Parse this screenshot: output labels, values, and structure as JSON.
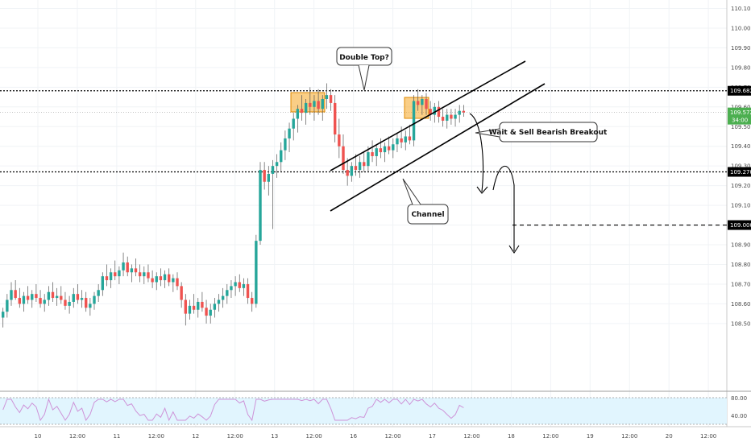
{
  "chart_data": [
    {
      "type": "candlestick",
      "ylim": [
        108.44,
        110.12
      ],
      "y_ticks": [
        "110.100",
        "110.000",
        "109.900",
        "109.800",
        "109.700",
        "109.600",
        "109.500",
        "109.400",
        "109.300",
        "109.200",
        "109.100",
        "109.000",
        "108.900",
        "108.800",
        "108.700",
        "108.600",
        "108.500"
      ],
      "x_ticks": [
        "10",
        "12:00",
        "11",
        "12:00",
        "12",
        "12:00",
        "13",
        "12:00",
        "16",
        "12:00",
        "17",
        "12:00",
        "18",
        "12:00",
        "19",
        "12:00",
        "20",
        "12:00"
      ],
      "grid": true,
      "colors": {
        "up": "#26a69a",
        "down": "#ef5350",
        "price_line": "#000000"
      },
      "horizontal_lines": [
        {
          "value": 109.682,
          "label": "109.682",
          "style": "dotted"
        },
        {
          "value": 109.27,
          "label": "109.270",
          "style": "dotted"
        },
        {
          "value": 109.0,
          "label": "109.000",
          "style": "dashed"
        }
      ],
      "current_price": {
        "value": 109.572,
        "label": "109.572",
        "countdown": "34:00",
        "color": "#4caf50"
      },
      "annotations": [
        {
          "text": "Double Top?"
        },
        {
          "text": "Wait & Sell Bearish Breakout"
        },
        {
          "text": "Channel"
        }
      ],
      "ohlc": [
        [
          108.53,
          108.58,
          108.48,
          108.56
        ],
        [
          108.56,
          108.65,
          108.53,
          108.62
        ],
        [
          108.62,
          108.71,
          108.59,
          108.67
        ],
        [
          108.67,
          108.72,
          108.62,
          108.63
        ],
        [
          108.63,
          108.68,
          108.58,
          108.6
        ],
        [
          108.6,
          108.66,
          108.56,
          108.64
        ],
        [
          108.64,
          108.69,
          108.6,
          108.62
        ],
        [
          108.62,
          108.67,
          108.58,
          108.65
        ],
        [
          108.65,
          108.7,
          108.61,
          108.63
        ],
        [
          108.63,
          108.67,
          108.58,
          108.6
        ],
        [
          108.6,
          108.65,
          108.56,
          108.62
        ],
        [
          108.62,
          108.69,
          108.59,
          108.66
        ],
        [
          108.66,
          108.71,
          108.61,
          108.63
        ],
        [
          108.63,
          108.68,
          108.59,
          108.64
        ],
        [
          108.64,
          108.69,
          108.6,
          108.62
        ],
        [
          108.62,
          108.66,
          108.57,
          108.59
        ],
        [
          108.59,
          108.64,
          108.55,
          108.61
        ],
        [
          108.61,
          108.68,
          108.58,
          108.65
        ],
        [
          108.65,
          108.7,
          108.6,
          108.62
        ],
        [
          108.62,
          108.67,
          108.58,
          108.63
        ],
        [
          108.63,
          108.66,
          108.56,
          108.58
        ],
        [
          108.58,
          108.63,
          108.54,
          108.6
        ],
        [
          108.6,
          108.66,
          108.57,
          108.64
        ],
        [
          108.64,
          108.7,
          108.61,
          108.67
        ],
        [
          108.67,
          108.76,
          108.64,
          108.74
        ],
        [
          108.74,
          108.8,
          108.69,
          108.72
        ],
        [
          108.72,
          108.78,
          108.68,
          108.76
        ],
        [
          108.76,
          108.82,
          108.72,
          108.74
        ],
        [
          108.74,
          108.79,
          108.7,
          108.77
        ],
        [
          108.77,
          108.86,
          108.74,
          108.81
        ],
        [
          108.81,
          108.84,
          108.74,
          108.76
        ],
        [
          108.76,
          108.8,
          108.71,
          108.78
        ],
        [
          108.78,
          108.83,
          108.74,
          108.76
        ],
        [
          108.76,
          108.8,
          108.71,
          108.74
        ],
        [
          108.74,
          108.79,
          108.7,
          108.76
        ],
        [
          108.76,
          108.8,
          108.71,
          108.73
        ],
        [
          108.73,
          108.77,
          108.68,
          108.71
        ],
        [
          108.71,
          108.76,
          108.67,
          108.74
        ],
        [
          108.74,
          108.78,
          108.69,
          108.72
        ],
        [
          108.72,
          108.77,
          108.68,
          108.75
        ],
        [
          108.75,
          108.78,
          108.69,
          108.71
        ],
        [
          108.71,
          108.75,
          108.66,
          108.73
        ],
        [
          108.73,
          108.76,
          108.67,
          108.69
        ],
        [
          108.69,
          108.71,
          108.58,
          108.62
        ],
        [
          108.62,
          108.65,
          108.49,
          108.55
        ],
        [
          108.55,
          108.62,
          108.52,
          108.59
        ],
        [
          108.59,
          108.65,
          108.55,
          108.57
        ],
        [
          108.57,
          108.63,
          108.53,
          108.61
        ],
        [
          108.61,
          108.66,
          108.56,
          108.58
        ],
        [
          108.58,
          108.62,
          108.5,
          108.54
        ],
        [
          108.54,
          108.6,
          108.5,
          108.57
        ],
        [
          108.57,
          108.63,
          108.53,
          108.6
        ],
        [
          108.6,
          108.65,
          108.56,
          108.62
        ],
        [
          108.62,
          108.68,
          108.58,
          108.64
        ],
        [
          108.64,
          108.7,
          108.6,
          108.67
        ],
        [
          108.67,
          108.72,
          108.63,
          108.69
        ],
        [
          108.69,
          108.74,
          108.64,
          108.71
        ],
        [
          108.71,
          108.75,
          108.66,
          108.68
        ],
        [
          108.68,
          108.73,
          108.64,
          108.7
        ],
        [
          108.7,
          108.73,
          108.6,
          108.63
        ],
        [
          108.63,
          108.66,
          108.56,
          108.6
        ],
        [
          108.6,
          108.95,
          108.58,
          108.92
        ],
        [
          108.92,
          109.32,
          108.9,
          109.28
        ],
        [
          109.28,
          109.32,
          109.18,
          109.22
        ],
        [
          109.22,
          109.3,
          109.15,
          109.26
        ],
        [
          109.26,
          109.33,
          108.98,
          109.3
        ],
        [
          109.3,
          109.36,
          109.24,
          109.32
        ],
        [
          109.32,
          109.42,
          109.27,
          109.38
        ],
        [
          109.38,
          109.48,
          109.33,
          109.44
        ],
        [
          109.44,
          109.52,
          109.37,
          109.49
        ],
        [
          109.49,
          109.57,
          109.43,
          109.54
        ],
        [
          109.54,
          109.61,
          109.47,
          109.59
        ],
        [
          109.59,
          109.66,
          109.53,
          109.57
        ],
        [
          109.57,
          109.64,
          109.51,
          109.62
        ],
        [
          109.62,
          109.7,
          109.56,
          109.6
        ],
        [
          109.6,
          109.66,
          109.53,
          109.63
        ],
        [
          109.63,
          109.69,
          109.56,
          109.59
        ],
        [
          109.59,
          109.66,
          109.53,
          109.64
        ],
        [
          109.64,
          109.72,
          109.59,
          109.66
        ],
        [
          109.66,
          109.69,
          109.58,
          109.62
        ],
        [
          109.62,
          109.66,
          109.42,
          109.46
        ],
        [
          109.46,
          109.54,
          109.34,
          109.4
        ],
        [
          109.4,
          109.46,
          109.26,
          109.28
        ],
        [
          109.28,
          109.34,
          109.2,
          109.25
        ],
        [
          109.25,
          109.32,
          109.22,
          109.3
        ],
        [
          109.3,
          109.36,
          109.25,
          109.28
        ],
        [
          109.28,
          109.35,
          109.24,
          109.32
        ],
        [
          109.32,
          109.37,
          109.27,
          109.3
        ],
        [
          109.3,
          109.4,
          109.27,
          109.37
        ],
        [
          109.37,
          109.43,
          109.32,
          109.35
        ],
        [
          109.35,
          109.41,
          109.3,
          109.39
        ],
        [
          109.39,
          109.44,
          109.34,
          109.37
        ],
        [
          109.37,
          109.42,
          109.32,
          109.4
        ],
        [
          109.4,
          109.45,
          109.36,
          109.38
        ],
        [
          109.38,
          109.44,
          109.34,
          109.41
        ],
        [
          109.41,
          109.47,
          109.37,
          109.44
        ],
        [
          109.44,
          109.5,
          109.39,
          109.42
        ],
        [
          109.42,
          109.48,
          109.38,
          109.45
        ],
        [
          109.45,
          109.51,
          109.41,
          109.43
        ],
        [
          109.43,
          109.66,
          109.4,
          109.63
        ],
        [
          109.63,
          109.69,
          109.58,
          109.61
        ],
        [
          109.61,
          109.66,
          109.56,
          109.64
        ],
        [
          109.64,
          109.67,
          109.56,
          109.59
        ],
        [
          109.59,
          109.63,
          109.53,
          109.56
        ],
        [
          109.56,
          109.62,
          109.52,
          109.6
        ],
        [
          109.6,
          109.63,
          109.52,
          109.55
        ],
        [
          109.55,
          109.59,
          109.5,
          109.53
        ],
        [
          109.53,
          109.59,
          109.49,
          109.56
        ],
        [
          109.56,
          109.59,
          109.51,
          109.54
        ],
        [
          109.54,
          109.59,
          109.5,
          109.56
        ],
        [
          109.56,
          109.61,
          109.52,
          109.58
        ],
        [
          109.58,
          109.61,
          109.55,
          109.572
        ]
      ],
      "indicator": {
        "type": "RSI",
        "levels": [
          "80.00",
          "40.00"
        ]
      }
    }
  ]
}
